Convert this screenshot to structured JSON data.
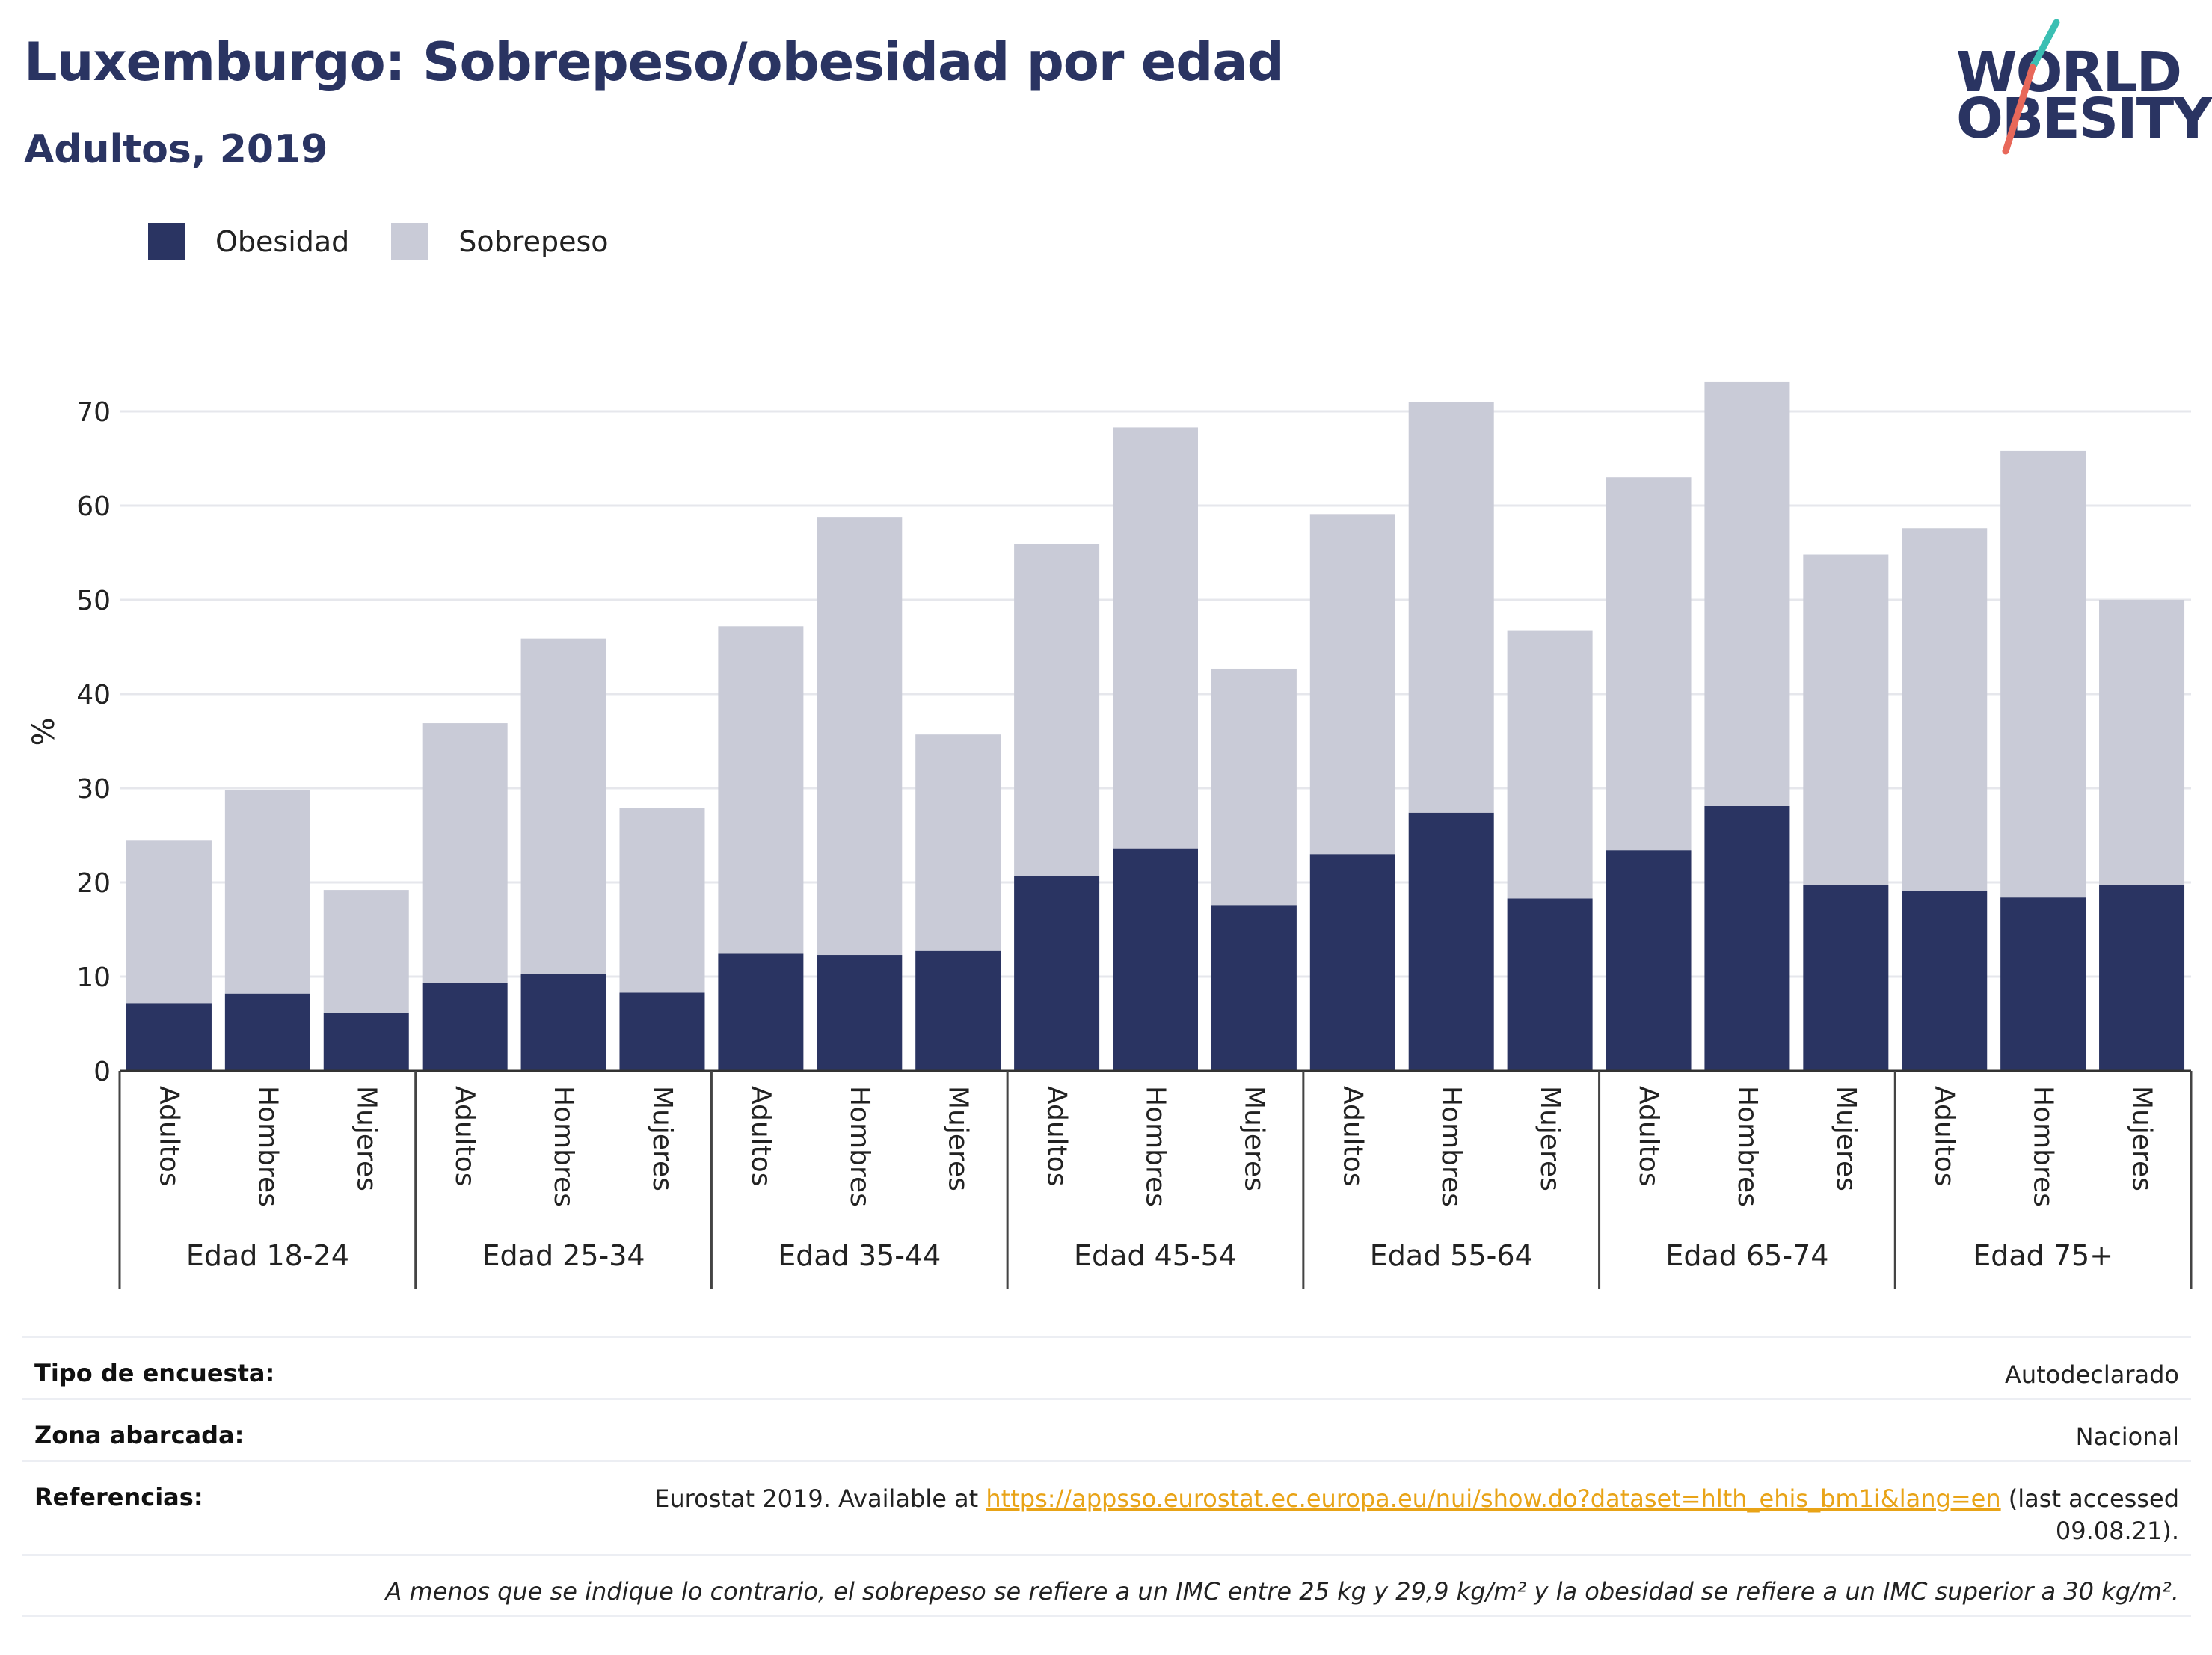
{
  "header": {
    "title": "Luxemburgo: Sobrepeso/obesidad por edad",
    "subtitle": "Adultos, 2019"
  },
  "logo": {
    "line1": "WORLD",
    "line2": "OBESITY",
    "slash_colors": [
      "#3bbfb3",
      "#e8685a"
    ]
  },
  "legend": [
    {
      "label": "Obesidad",
      "color": "#2a3462"
    },
    {
      "label": "Sobrepeso",
      "color": "#c9cbd7"
    }
  ],
  "chart_data": {
    "type": "bar",
    "stacked": true,
    "ylabel": "%",
    "ylim": [
      0,
      78
    ],
    "yticks": [
      0,
      10,
      20,
      30,
      40,
      50,
      60,
      70
    ],
    "grid": true,
    "legend_position": "top-left",
    "groups": [
      "Edad 18-24",
      "Edad 25-34",
      "Edad 35-44",
      "Edad 45-54",
      "Edad 55-64",
      "Edad 65-74",
      "Edad 75+"
    ],
    "subcategories": [
      "Adultos",
      "Hombres",
      "Mujeres"
    ],
    "series": [
      {
        "name": "Obesidad",
        "color": "#2a3462",
        "values": [
          7.2,
          8.2,
          6.2,
          9.3,
          10.3,
          8.3,
          12.5,
          12.3,
          12.8,
          20.7,
          23.6,
          17.6,
          23.0,
          27.4,
          18.3,
          23.4,
          28.1,
          19.7,
          19.1,
          18.4,
          19.7
        ]
      },
      {
        "name": "Sobrepeso",
        "color": "#c9cbd7",
        "values": [
          17.3,
          21.6,
          13.0,
          27.6,
          35.6,
          19.6,
          34.7,
          46.5,
          22.9,
          35.2,
          44.7,
          25.1,
          36.1,
          43.6,
          28.4,
          39.6,
          45.0,
          35.1,
          38.5,
          47.4,
          30.3
        ]
      }
    ]
  },
  "info": {
    "survey_label": "Tipo de encuesta:",
    "survey_value": "Autodeclarado",
    "area_label": "Zona abarcada:",
    "area_value": "Nacional",
    "refs_label": "Referencias:",
    "refs_prefix": "Eurostat 2019. Available at ",
    "refs_link": "https://appsso.eurostat.ec.europa.eu/nui/show.do?dataset=hlth_ehis_bm1i&lang=en",
    "refs_suffix": " (last accessed 09.08.21).",
    "note": "A menos que se indique lo contrario, el sobrepeso se refiere a un IMC entre 25 kg y 29,9 kg/m² y la obesidad se refiere a un IMC superior a 30 kg/m²."
  }
}
